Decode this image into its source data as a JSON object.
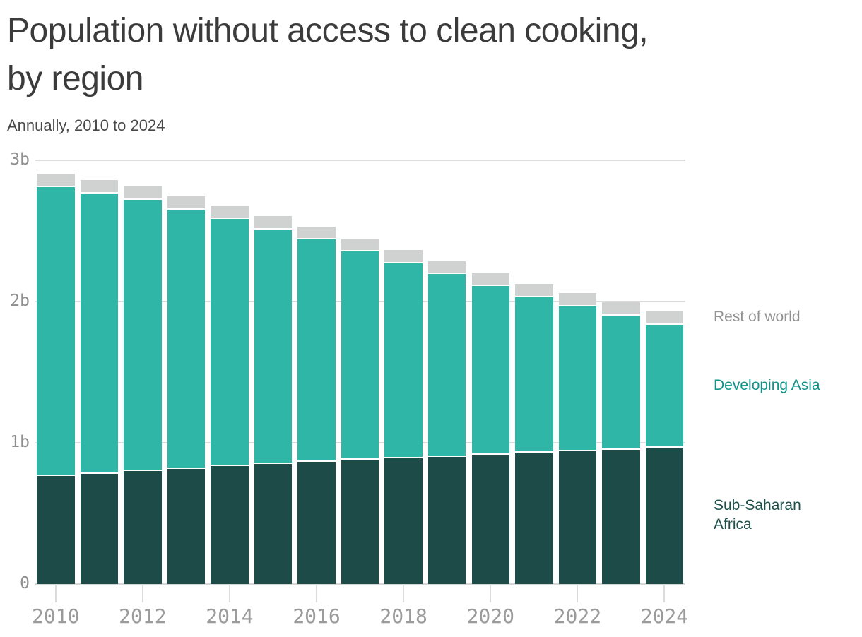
{
  "title": "Population without access to clean cooking,\nby region",
  "subtitle": "Annually, 2010 to 2024",
  "colors": {
    "background": "#ffffff",
    "title_text": "#3b3b3b",
    "subtitle_text": "#484848",
    "axis_text": "#9b9b9b",
    "gridline": "#dcdcdc",
    "sub_saharan_africa_bar": "#1d4b47",
    "developing_asia_bar": "#2fb6a6",
    "rest_of_world_bar": "#d0d1d1",
    "sub_saharan_africa_label": "#1d504b",
    "developing_asia_label": "#0f948a",
    "rest_of_world_label": "#919191"
  },
  "legend": {
    "items": [
      {
        "label": "Rest of world",
        "color": "#919191"
      },
      {
        "label": "Developing Asia",
        "color": "#0f948a"
      },
      {
        "label": "Sub-Saharan\nAfrica",
        "color": "#1d504b"
      }
    ]
  },
  "chart_data": {
    "type": "bar",
    "stacked": true,
    "title": "Population without access to clean cooking, by region",
    "subtitle": "Annually, 2010 to 2024",
    "unit": "billions of people",
    "xlabel": "",
    "ylabel": "",
    "ylim": [
      0,
      3
    ],
    "y_tick_values": [
      0,
      1,
      2,
      3
    ],
    "y_tick_labels": [
      "0",
      "1b",
      "2b",
      "3b"
    ],
    "x_tick_labels": [
      "2010",
      "2012",
      "2014",
      "2016",
      "2018",
      "2020",
      "2022",
      "2024"
    ],
    "grid": true,
    "legend_position": "right",
    "categories": [
      2010,
      2011,
      2012,
      2013,
      2014,
      2015,
      2016,
      2017,
      2018,
      2019,
      2020,
      2021,
      2022,
      2023,
      2024
    ],
    "series": [
      {
        "name": "Sub-Saharan Africa",
        "color": "#1d4b47",
        "values": [
          0.765,
          0.78,
          0.8,
          0.815,
          0.835,
          0.85,
          0.865,
          0.88,
          0.89,
          0.9,
          0.915,
          0.93,
          0.94,
          0.95,
          0.965
        ]
      },
      {
        "name": "Developing Asia",
        "color": "#2fb6a6",
        "values": [
          2.045,
          1.985,
          1.92,
          1.835,
          1.75,
          1.66,
          1.575,
          1.475,
          1.38,
          1.295,
          1.195,
          1.1,
          1.025,
          0.95,
          0.87
        ]
      },
      {
        "name": "Rest of world",
        "color": "#d0d1d1",
        "values": [
          0.095,
          0.095,
          0.095,
          0.095,
          0.095,
          0.095,
          0.09,
          0.085,
          0.095,
          0.09,
          0.095,
          0.095,
          0.095,
          0.095,
          0.1
        ]
      }
    ]
  }
}
